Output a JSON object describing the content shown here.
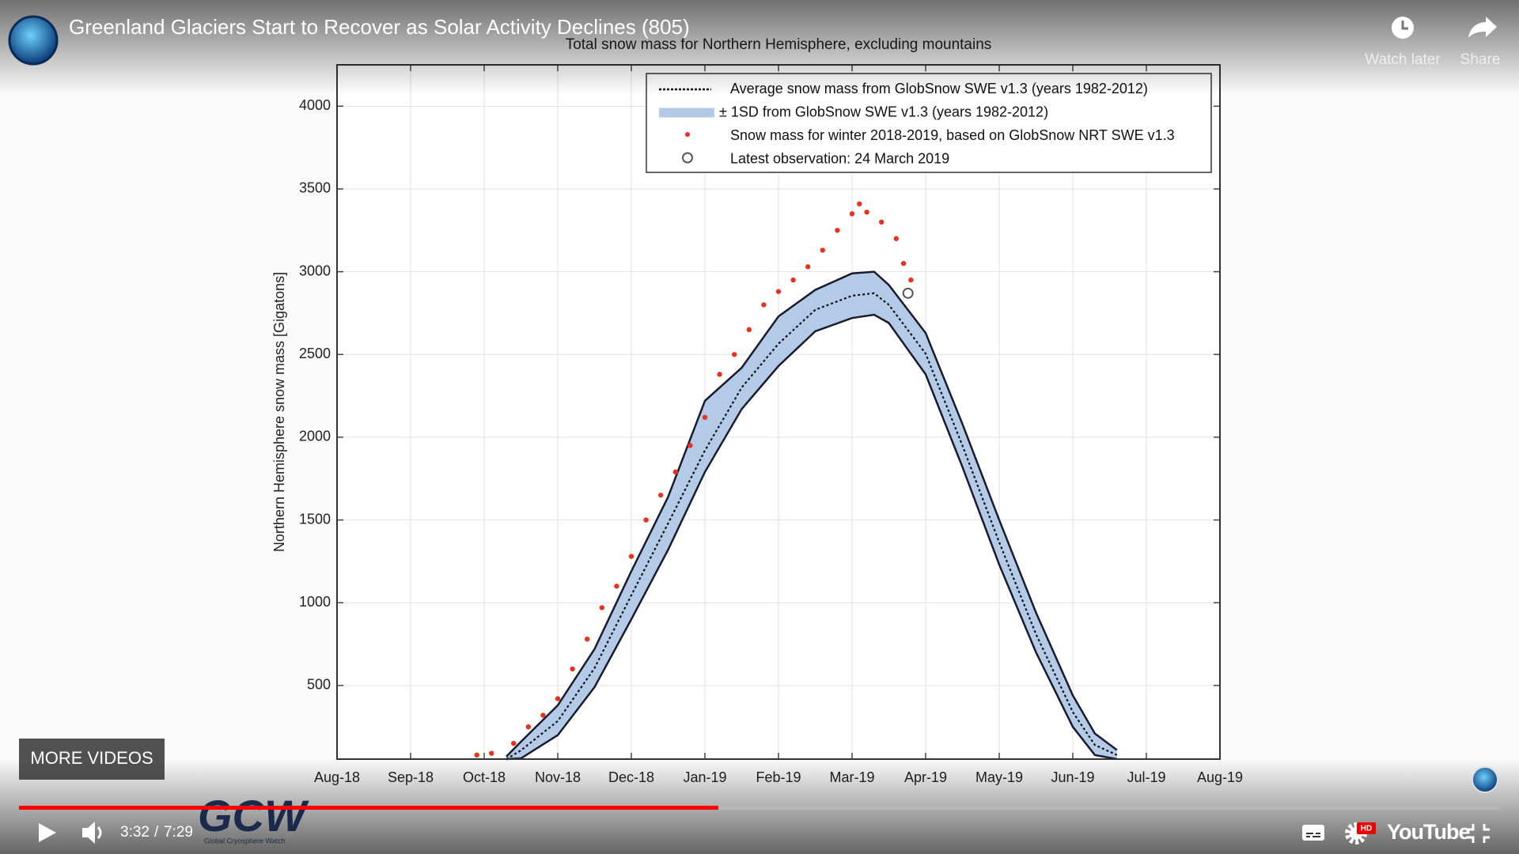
{
  "player": {
    "video_title": "Greenland Glaciers Start to Recover as Solar Activity Declines (805)",
    "watch_later": "Watch later",
    "share": "Share",
    "more_videos": "MORE VIDEOS",
    "time_current": "3:32",
    "time_separator": "/",
    "time_total": "7:29",
    "logo": "YouTube",
    "hd_badge": "HD",
    "watermark": "GCW",
    "watermark_sub": "Global Cryosphere Watch"
  },
  "chart_data": {
    "type": "line",
    "title": "Total snow mass for Northern Hemisphere, excluding mountains",
    "y_label": "Northern Hemisphere snow mass [Gigatons]",
    "xlim": [
      0,
      12
    ],
    "xticks": [
      {
        "value": 0,
        "label": "Aug-18"
      },
      {
        "value": 1,
        "label": "Sep-18"
      },
      {
        "value": 2,
        "label": "Oct-18"
      },
      {
        "value": 3,
        "label": "Nov-18"
      },
      {
        "value": 4,
        "label": "Dec-18"
      },
      {
        "value": 5,
        "label": "Jan-19"
      },
      {
        "value": 6,
        "label": "Feb-19"
      },
      {
        "value": 7,
        "label": "Mar-19"
      },
      {
        "value": 8,
        "label": "Apr-19"
      },
      {
        "value": 9,
        "label": "May-19"
      },
      {
        "value": 10,
        "label": "Jun-19"
      },
      {
        "value": 11,
        "label": "Jul-19"
      },
      {
        "value": 12,
        "label": "Aug-19"
      }
    ],
    "ylim": [
      55,
      4250
    ],
    "yticks": [
      500,
      1000,
      1500,
      2000,
      2500,
      3000,
      3500,
      4000
    ],
    "grid": true,
    "legend": "top-right",
    "series": [
      {
        "name": "Average snow mass from GlobSnow SWE v1.3 (years 1982-2012)",
        "type": "line",
        "style": "dotted",
        "color": "#111111",
        "x": [
          2.3,
          2.5,
          3.0,
          3.5,
          4.0,
          4.5,
          5.0,
          5.5,
          6.0,
          6.5,
          7.0,
          7.3,
          7.5,
          8.0,
          8.5,
          9.0,
          9.5,
          10.0,
          10.3,
          10.6
        ],
        "values": [
          55,
          108,
          285,
          605,
          1045,
          1480,
          1920,
          2300,
          2565,
          2770,
          2855,
          2870,
          2800,
          2505,
          1950,
          1365,
          810,
          340,
          140,
          80
        ]
      },
      {
        "name": "± 1SD from GlobSnow SWE v1.3 (years 1982-2012)",
        "type": "band",
        "color": "#b4cbe8",
        "edge_color": "#1a1a2e",
        "x": [
          2.3,
          2.5,
          3.0,
          3.5,
          4.0,
          4.5,
          5.0,
          5.5,
          6.0,
          6.5,
          7.0,
          7.3,
          7.5,
          8.0,
          8.5,
          9.0,
          9.5,
          10.0,
          10.3,
          10.6
        ],
        "lower": [
          55,
          60,
          200,
          490,
          900,
          1320,
          1790,
          2170,
          2430,
          2640,
          2720,
          2740,
          2690,
          2380,
          1820,
          1230,
          700,
          250,
          80,
          55
        ],
        "upper": [
          70,
          160,
          380,
          720,
          1190,
          1640,
          2220,
          2420,
          2730,
          2890,
          2990,
          3000,
          2920,
          2630,
          2080,
          1500,
          940,
          440,
          210,
          110
        ]
      },
      {
        "name": "Snow mass for winter 2018-2019, based on GlobSnow NRT SWE v1.3",
        "type": "scatter",
        "color": "#e8321e",
        "x": [
          1.9,
          2.1,
          2.4,
          2.6,
          2.8,
          3.0,
          3.2,
          3.4,
          3.6,
          3.8,
          4.0,
          4.2,
          4.4,
          4.6,
          4.8,
          5.0,
          5.2,
          5.4,
          5.6,
          5.8,
          6.0,
          6.2,
          6.4,
          6.6,
          6.8,
          7.0,
          7.1,
          7.2,
          7.4,
          7.6,
          7.7,
          7.8
        ],
        "values": [
          80,
          90,
          150,
          250,
          320,
          420,
          600,
          780,
          970,
          1100,
          1280,
          1500,
          1650,
          1790,
          1950,
          2120,
          2380,
          2500,
          2650,
          2800,
          2880,
          2950,
          3030,
          3130,
          3250,
          3350,
          3410,
          3360,
          3300,
          3200,
          3050,
          2950
        ]
      },
      {
        "name": "Latest observation: 24 March 2019",
        "type": "marker",
        "color": "#555555",
        "x": [
          7.76
        ],
        "values": [
          2870
        ]
      }
    ]
  }
}
